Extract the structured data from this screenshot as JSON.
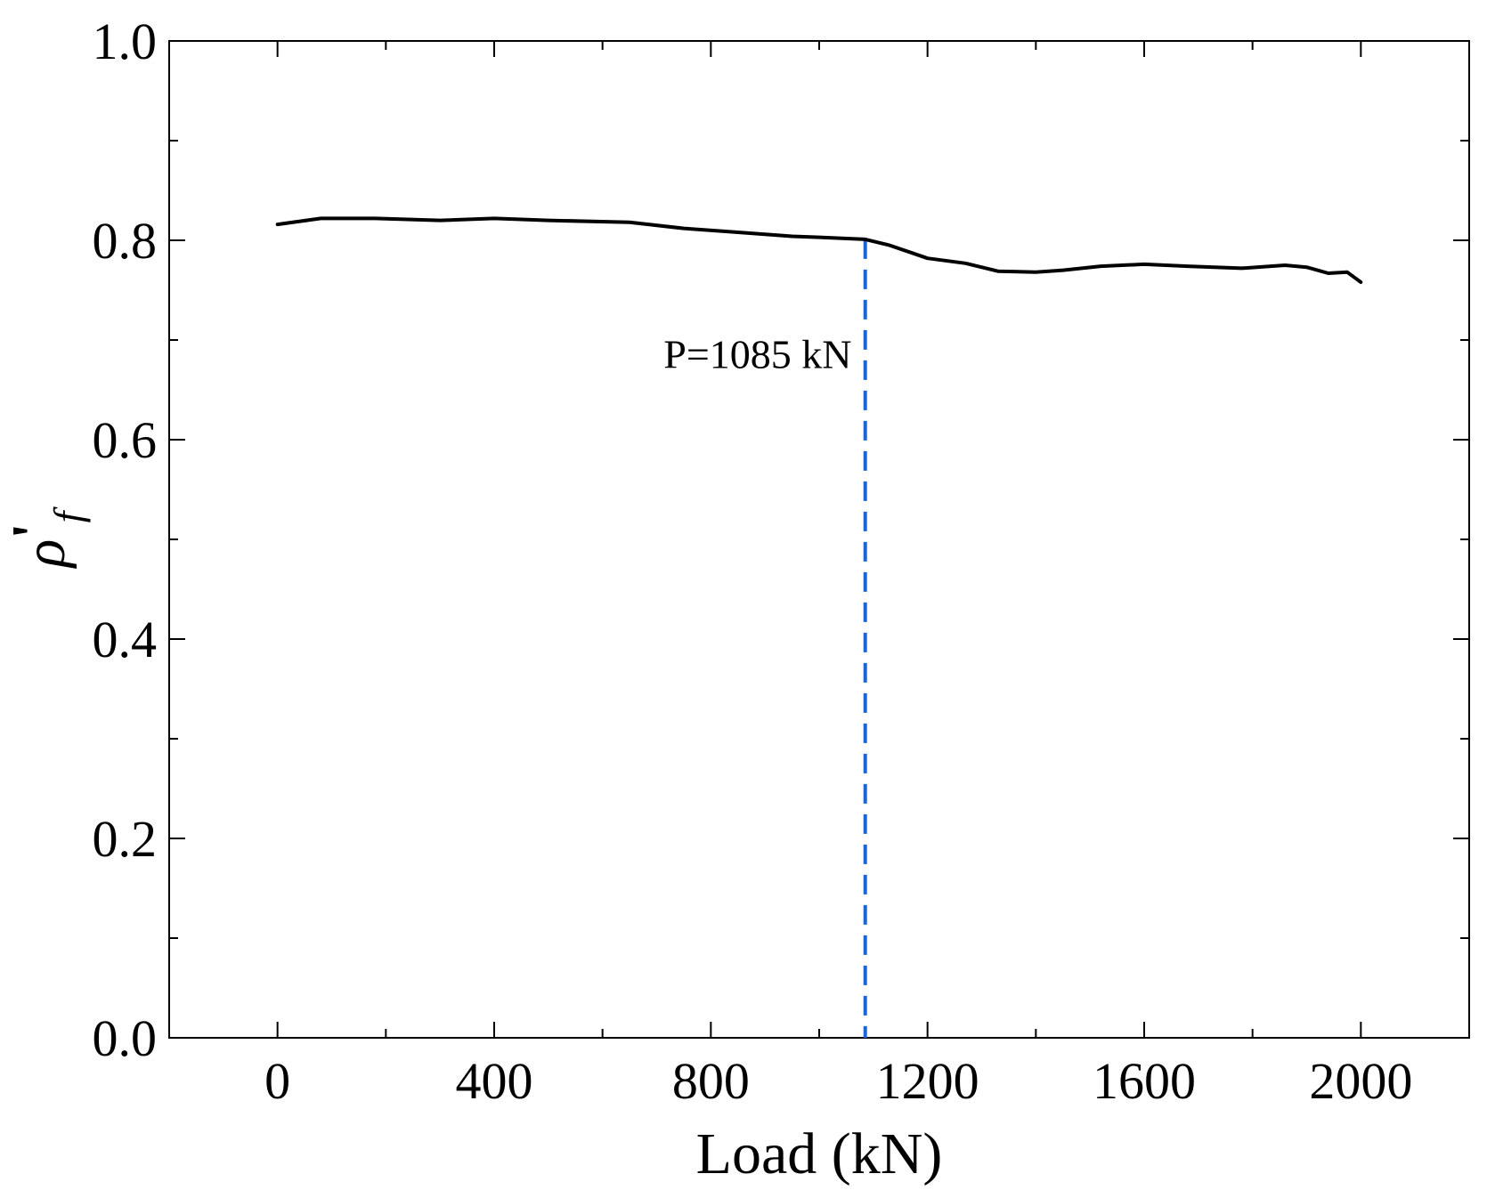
{
  "chart_data": {
    "type": "line",
    "title": "",
    "xlabel": "Load (kN)",
    "ylabel_symbol": "ρ",
    "ylabel_prime": "'",
    "ylabel_subscript": "f",
    "xlim": [
      -200,
      2200
    ],
    "ylim": [
      0.0,
      1.0
    ],
    "x_major_ticks": [
      0,
      400,
      800,
      1200,
      1600,
      2000
    ],
    "x_major_tick_labels": [
      "0",
      "400",
      "800",
      "1200",
      "1600",
      "2000"
    ],
    "x_minor_ticks": [
      -200,
      200,
      600,
      1000,
      1400,
      1800,
      2200
    ],
    "y_major_ticks": [
      0.0,
      0.2,
      0.4,
      0.6,
      0.8,
      1.0
    ],
    "y_major_tick_labels": [
      "0.0",
      "0.2",
      "0.4",
      "0.6",
      "0.8",
      "1.0"
    ],
    "y_minor_ticks": [
      0.1,
      0.3,
      0.5,
      0.7,
      0.9
    ],
    "grid": false,
    "series": [
      {
        "name": "rho_f",
        "color": "#000000",
        "x": [
          0,
          80,
          180,
          300,
          400,
          500,
          650,
          750,
          850,
          950,
          1000,
          1085,
          1130,
          1200,
          1270,
          1330,
          1400,
          1450,
          1520,
          1600,
          1680,
          1780,
          1860,
          1900,
          1940,
          1975,
          2000
        ],
        "y": [
          0.816,
          0.822,
          0.822,
          0.82,
          0.822,
          0.82,
          0.818,
          0.812,
          0.808,
          0.804,
          0.803,
          0.801,
          0.795,
          0.782,
          0.777,
          0.769,
          0.768,
          0.77,
          0.774,
          0.776,
          0.774,
          0.772,
          0.775,
          0.773,
          0.767,
          0.768,
          0.758
        ]
      }
    ],
    "vline": {
      "x": 1085,
      "y_top": 0.801,
      "color": "#1a66d9",
      "style": "dashed"
    },
    "annotation": {
      "text": "P=1085 kN",
      "x": 1060,
      "y": 0.672
    }
  }
}
